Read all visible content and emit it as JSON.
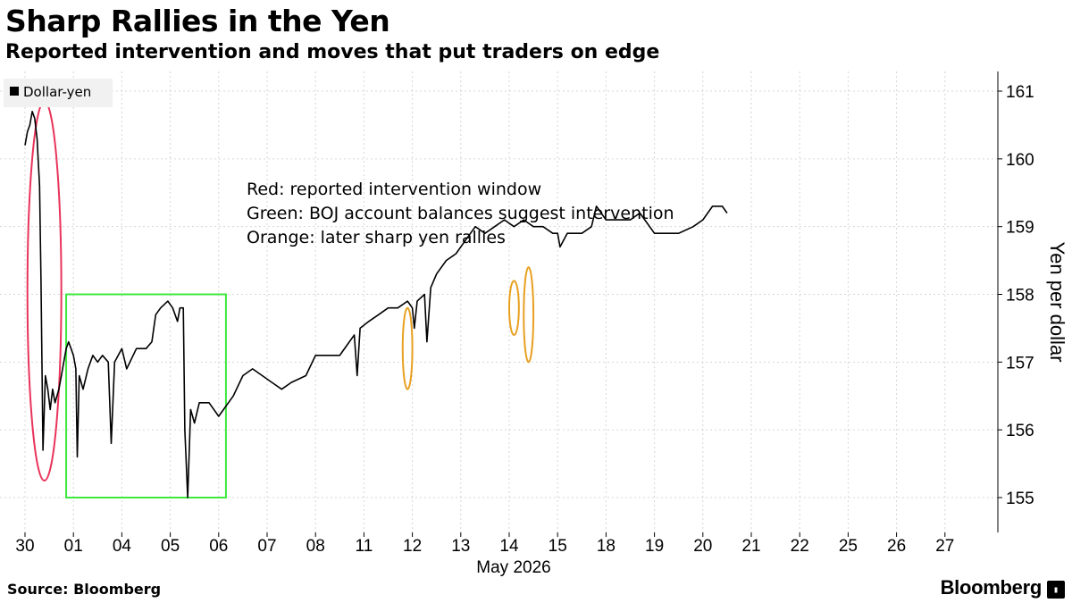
{
  "header": {
    "title": "Sharp Rallies in the Yen",
    "subtitle": "Reported intervention and moves that put traders on edge"
  },
  "footer": {
    "source": "Source: Bloomberg",
    "brand": "Bloomberg",
    "brand_icon": "terminal-icon"
  },
  "chart_data": {
    "type": "line",
    "series": [
      {
        "name": "Dollar-yen",
        "color": "#000000"
      }
    ],
    "legend": {
      "label": "Dollar-yen",
      "placement": "top-left"
    },
    "ylabel": "Yen per dollar",
    "xlabel": "May 2026",
    "ylim": [
      154.5,
      161.2
    ],
    "yticks": [
      155,
      156,
      157,
      158,
      159,
      160,
      161
    ],
    "grid": true,
    "session_labels": [
      "30",
      "01",
      "04",
      "05",
      "06",
      "07",
      "08",
      "11",
      "12",
      "13",
      "14",
      "15",
      "18",
      "19",
      "20",
      "21",
      "22",
      "25",
      "26",
      "27"
    ],
    "points": [
      [
        0,
        160.2
      ],
      [
        0.05,
        160.4
      ],
      [
        0.1,
        160.5
      ],
      [
        0.15,
        160.7
      ],
      [
        0.2,
        160.6
      ],
      [
        0.25,
        160.3
      ],
      [
        0.3,
        159.6
      ],
      [
        0.33,
        158.2
      ],
      [
        0.37,
        155.7
      ],
      [
        0.42,
        156.8
      ],
      [
        0.47,
        156.6
      ],
      [
        0.52,
        156.3
      ],
      [
        0.57,
        156.6
      ],
      [
        0.62,
        156.4
      ],
      [
        0.7,
        156.6
      ],
      [
        0.75,
        156.8
      ],
      [
        0.85,
        157.2
      ],
      [
        0.9,
        157.3
      ],
      [
        1.0,
        157.1
      ],
      [
        1.05,
        156.9
      ],
      [
        1.08,
        155.6
      ],
      [
        1.12,
        156.8
      ],
      [
        1.2,
        156.6
      ],
      [
        1.3,
        156.9
      ],
      [
        1.4,
        157.1
      ],
      [
        1.5,
        157.0
      ],
      [
        1.6,
        157.1
      ],
      [
        1.72,
        157.0
      ],
      [
        1.78,
        155.8
      ],
      [
        1.85,
        157.0
      ],
      [
        2.0,
        157.2
      ],
      [
        2.1,
        156.9
      ],
      [
        2.3,
        157.2
      ],
      [
        2.5,
        157.2
      ],
      [
        2.62,
        157.3
      ],
      [
        2.7,
        157.7
      ],
      [
        2.8,
        157.8
      ],
      [
        2.95,
        157.9
      ],
      [
        3.05,
        157.8
      ],
      [
        3.15,
        157.6
      ],
      [
        3.2,
        157.8
      ],
      [
        3.27,
        157.8
      ],
      [
        3.3,
        156.0
      ],
      [
        3.36,
        155.0
      ],
      [
        3.42,
        156.3
      ],
      [
        3.5,
        156.1
      ],
      [
        3.6,
        156.4
      ],
      [
        3.8,
        156.4
      ],
      [
        4.0,
        156.2
      ],
      [
        4.3,
        156.5
      ],
      [
        4.5,
        156.8
      ],
      [
        4.7,
        156.9
      ],
      [
        4.9,
        156.8
      ],
      [
        5.1,
        156.7
      ],
      [
        5.3,
        156.6
      ],
      [
        5.5,
        156.7
      ],
      [
        5.8,
        156.8
      ],
      [
        6.0,
        157.1
      ],
      [
        6.2,
        157.1
      ],
      [
        6.5,
        157.1
      ],
      [
        6.7,
        157.3
      ],
      [
        6.8,
        157.4
      ],
      [
        6.86,
        156.8
      ],
      [
        6.92,
        157.5
      ],
      [
        7.1,
        157.6
      ],
      [
        7.3,
        157.7
      ],
      [
        7.5,
        157.8
      ],
      [
        7.7,
        157.8
      ],
      [
        7.9,
        157.9
      ],
      [
        8.0,
        157.8
      ],
      [
        8.04,
        157.5
      ],
      [
        8.1,
        157.9
      ],
      [
        8.25,
        158.0
      ],
      [
        8.3,
        157.3
      ],
      [
        8.38,
        158.1
      ],
      [
        8.5,
        158.3
      ],
      [
        8.7,
        158.5
      ],
      [
        8.9,
        158.6
      ],
      [
        9.1,
        158.8
      ],
      [
        9.3,
        159.0
      ],
      [
        9.5,
        158.9
      ],
      [
        9.7,
        159.0
      ],
      [
        9.9,
        159.1
      ],
      [
        10.1,
        159.0
      ],
      [
        10.3,
        159.1
      ],
      [
        10.5,
        159.0
      ],
      [
        10.7,
        159.0
      ],
      [
        10.9,
        158.9
      ],
      [
        11.0,
        158.9
      ],
      [
        11.05,
        158.7
      ],
      [
        11.2,
        158.9
      ],
      [
        11.5,
        158.9
      ],
      [
        11.7,
        159.0
      ],
      [
        11.8,
        159.3
      ],
      [
        12.0,
        159.1
      ],
      [
        12.3,
        159.1
      ],
      [
        12.5,
        159.1
      ],
      [
        12.7,
        159.2
      ],
      [
        12.8,
        159.1
      ],
      [
        13.0,
        158.9
      ],
      [
        13.2,
        158.9
      ],
      [
        13.5,
        158.9
      ],
      [
        13.8,
        159.0
      ],
      [
        14.0,
        159.1
      ],
      [
        14.2,
        159.3
      ],
      [
        14.3,
        159.3
      ],
      [
        14.4,
        159.3
      ],
      [
        14.5,
        159.2
      ]
    ],
    "annotation_lines": [
      "Red: reported intervention window",
      "Green: BOJ account balances suggest intervention",
      "Orange: later sharp yen rallies"
    ],
    "highlights": [
      {
        "shape": "ellipse",
        "color": "#e8345a",
        "x_range": [
          0.05,
          0.75
        ],
        "y_range": [
          155.25,
          160.85
        ]
      },
      {
        "shape": "rect",
        "color": "#3ee83e",
        "x_range": [
          0.85,
          4.15
        ],
        "y_range": [
          155.0,
          158.0
        ]
      },
      {
        "shape": "ellipse",
        "color": "#e8a020",
        "x_range": [
          7.8,
          8.0
        ],
        "y_range": [
          156.6,
          157.8
        ]
      },
      {
        "shape": "ellipse",
        "color": "#e8a020",
        "x_range": [
          10.0,
          10.2
        ],
        "y_range": [
          157.4,
          158.2
        ]
      },
      {
        "shape": "ellipse",
        "color": "#e8a020",
        "x_range": [
          10.3,
          10.5
        ],
        "y_range": [
          157.0,
          158.4
        ]
      }
    ]
  }
}
